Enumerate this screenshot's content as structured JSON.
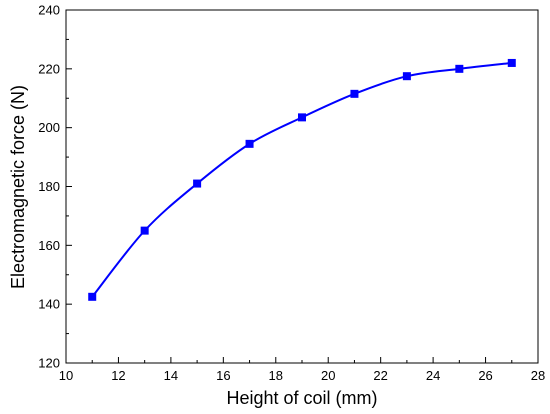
{
  "chart_data": {
    "type": "line",
    "xlabel": "Height of coil (mm)",
    "ylabel": "Electromagnetic force (N)",
    "xlim": [
      10,
      28
    ],
    "ylim": [
      120,
      240
    ],
    "xticks": [
      10,
      12,
      14,
      16,
      18,
      20,
      22,
      24,
      26,
      28
    ],
    "yticks": [
      120,
      140,
      160,
      180,
      200,
      220,
      240
    ],
    "x_minor_step": 1,
    "y_minor_step": 10,
    "grid": false,
    "series": [
      {
        "x": [
          11,
          13,
          15,
          17,
          19,
          21,
          23,
          25,
          27
        ],
        "y": [
          142.5,
          165,
          181,
          194.5,
          203.5,
          211.5,
          217.5,
          220,
          222
        ],
        "marker": "square",
        "line": "smooth",
        "color": "#0000ff"
      }
    ]
  }
}
